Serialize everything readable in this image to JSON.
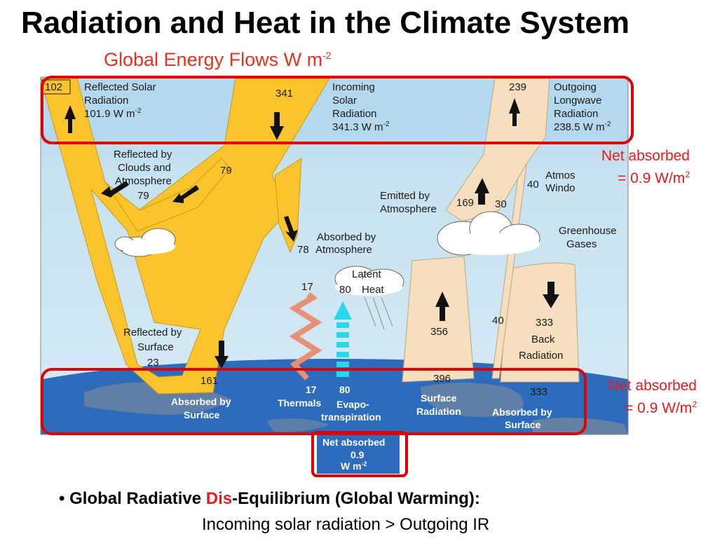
{
  "title": "Radiation and Heat in the Climate System",
  "subtitle": {
    "text": "Global Energy Flows  W m",
    "exponent": "-2"
  },
  "diagram": {
    "reflected_solar": {
      "value": "102",
      "label_1": "Reflected Solar",
      "label_2": "Radiation",
      "label_3": "101.9 W m",
      "exp": "-2"
    },
    "incoming_solar": {
      "value": "341",
      "label_1": "Incoming",
      "label_2": "Solar",
      "label_3": "Radiation",
      "label_4": "341.3 W m",
      "exp": "-2"
    },
    "outgoing_lw": {
      "value": "239",
      "label_1": "Outgoing",
      "label_2": "Longwave",
      "label_3": "Radiation",
      "label_4": "238.5 W m",
      "exp": "-2"
    },
    "reflected_clouds": {
      "label_1": "Reflected by",
      "label_2": "Clouds and",
      "label_3": "Atmosphere",
      "value": "79",
      "value_stream": "79"
    },
    "emitted_atm": {
      "label_1": "Emitted by",
      "label_2": "Atmosphere",
      "value": "169",
      "value_2": "30"
    },
    "atm_window": {
      "value": "40",
      "label_1": "Atmos",
      "label_2": "Windo"
    },
    "greenhouse": {
      "label_1": "Greenhouse",
      "label_2": "Gases"
    },
    "absorbed_atm": {
      "label_1": "Absorbed by",
      "label_2": "Atmosphere",
      "value": "78"
    },
    "latent_heat": {
      "label_1": "Latent",
      "label_2": "Heat",
      "value": "80"
    },
    "thermals_top": "17",
    "surface_up": "356",
    "window_low": "40",
    "back_radiation": {
      "value": "333",
      "label_1": "Back",
      "label_2": "Radiation"
    },
    "reflected_surface": {
      "label_1": "Reflected by",
      "label_2": "Surface",
      "value": "23"
    },
    "absorbed_surface_value": "161",
    "thermals": {
      "value": "17",
      "label": "Thermals"
    },
    "evapo": {
      "value": "80",
      "label_1": "Evapo-",
      "label_2": "transpiration"
    },
    "surface_radiation": {
      "value": "396",
      "label_1": "Surface",
      "label_2": "Radiation"
    },
    "absorbed_by_surface_right": {
      "value": "333",
      "label_1": "Absorbed by",
      "label_2": "Surface"
    },
    "absorbed_by_surface_left": {
      "label_1": "Absorbed by",
      "label_2": "Surface"
    },
    "net_absorbed_center": {
      "label_1": "Net absorbed",
      "label_2": "0.9",
      "label_3": "W m",
      "exp": "-2"
    }
  },
  "notes": {
    "top": {
      "line_1": "Net absorbed",
      "line_2": "= 0.9 W/m",
      "exp": "2"
    },
    "bottom": {
      "line_1": "Net absorbed",
      "line_2": "= 0.9 W/m",
      "exp": "2"
    }
  },
  "bullet": {
    "bullet_char": "•",
    "part_1": "Global Radiative ",
    "part_red": "Dis",
    "part_2": "-Equilibrium (Global Warming):",
    "sub": "Incoming solar radiation > Outgoing IR"
  },
  "colors": {
    "highlight_red": "#e00000",
    "solar_yellow": "#fbc42c",
    "longwave_tan": "#f6dfbd",
    "sky_blue": "#c4dfee",
    "ocean_blue": "#2e6fc0"
  }
}
